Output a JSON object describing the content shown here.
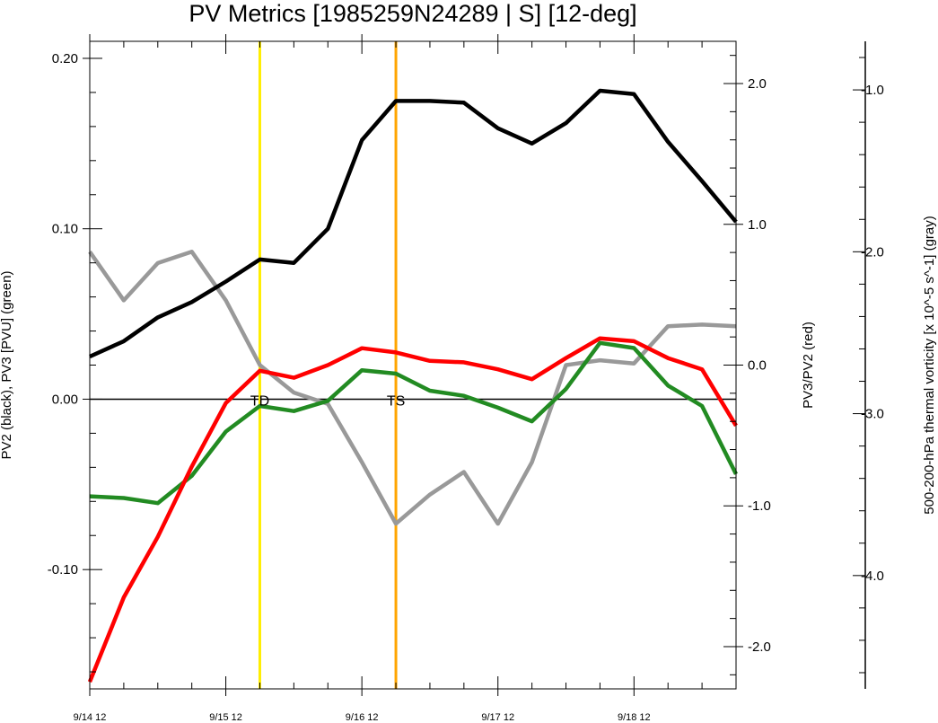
{
  "chart_data": {
    "type": "line",
    "title": "PV Metrics [1985259N24289 | S] [12-deg]",
    "x_ticks": [
      "9/14 12",
      "9/15 12",
      "9/16 12",
      "9/17 12",
      "9/18 12"
    ],
    "x_range_hours": [
      0,
      114
    ],
    "left_axis": {
      "label": "PV2 (black), PV3 [PVU] (green)",
      "ylim": [
        -0.17,
        0.21
      ],
      "ticks": [
        0.2,
        0.1,
        0.0,
        -0.1
      ],
      "tick_labels": [
        "0.20",
        "0.10",
        "0.00",
        "-0.10"
      ]
    },
    "right_axis": {
      "label": "PV3/PV2 (red)",
      "ylim": [
        -2.3,
        2.3
      ],
      "ticks": [
        2.0,
        1.0,
        0.0,
        -1.0,
        -2.0
      ],
      "tick_labels": [
        "2.0",
        "1.0",
        "0.0",
        "-1.0",
        "-2.0"
      ]
    },
    "far_right_axis": {
      "label": "500-200-hPa thermal vorticity [x 10^-5 s^-1] (gray)",
      "ylim": [
        -4.7,
        -0.7
      ],
      "ticks": [
        -1.0,
        -2.0,
        -3.0,
        -4.0
      ],
      "tick_labels": [
        "-1.0",
        "-2.0",
        "-3.0",
        "-4.0"
      ]
    },
    "x_hours": [
      0,
      6,
      12,
      18,
      24,
      30,
      36,
      42,
      48,
      54,
      60,
      66,
      72,
      78,
      84,
      90,
      96,
      102,
      108,
      114
    ],
    "series": [
      {
        "name": "PV2",
        "color": "#000000",
        "axis": "left",
        "values": [
          0.025,
          0.034,
          0.048,
          0.057,
          0.069,
          0.082,
          0.08,
          0.1,
          0.152,
          0.175,
          0.175,
          0.174,
          0.159,
          0.15,
          0.162,
          0.181,
          0.179,
          0.151,
          0.128,
          0.104
        ]
      },
      {
        "name": "PV3",
        "color": "#228b22",
        "axis": "left",
        "values": [
          -0.057,
          -0.058,
          -0.061,
          -0.045,
          -0.019,
          -0.004,
          -0.007,
          -0.001,
          0.017,
          0.015,
          0.005,
          0.002,
          -0.005,
          -0.013,
          0.006,
          0.033,
          0.03,
          0.008,
          -0.004,
          -0.044
        ]
      },
      {
        "name": "PV3/PV2",
        "color": "#ff0000",
        "axis": "right",
        "values": [
          -2.25,
          -1.65,
          -1.22,
          -0.72,
          -0.27,
          -0.04,
          -0.09,
          0.0,
          0.12,
          0.09,
          0.03,
          0.02,
          -0.03,
          -0.1,
          0.05,
          0.19,
          0.17,
          0.05,
          -0.03,
          -0.43
        ]
      },
      {
        "name": "thermal vorticity",
        "color": "#999999",
        "axis": "far_right",
        "values": [
          -2.0,
          -2.3,
          -2.07,
          -2.0,
          -2.3,
          -2.7,
          -2.87,
          -2.94,
          -3.3,
          -3.68,
          -3.5,
          -3.36,
          -3.68,
          -3.3,
          -2.7,
          -2.67,
          -2.69,
          -2.46,
          -2.45,
          -2.46
        ]
      }
    ],
    "vertical_lines": [
      {
        "hours": 30,
        "color": "#ffee00",
        "label": "TD"
      },
      {
        "hours": 54,
        "color": "#ffa500",
        "label": "TS"
      }
    ],
    "zero_line": true,
    "grid": false,
    "legend": "none"
  }
}
